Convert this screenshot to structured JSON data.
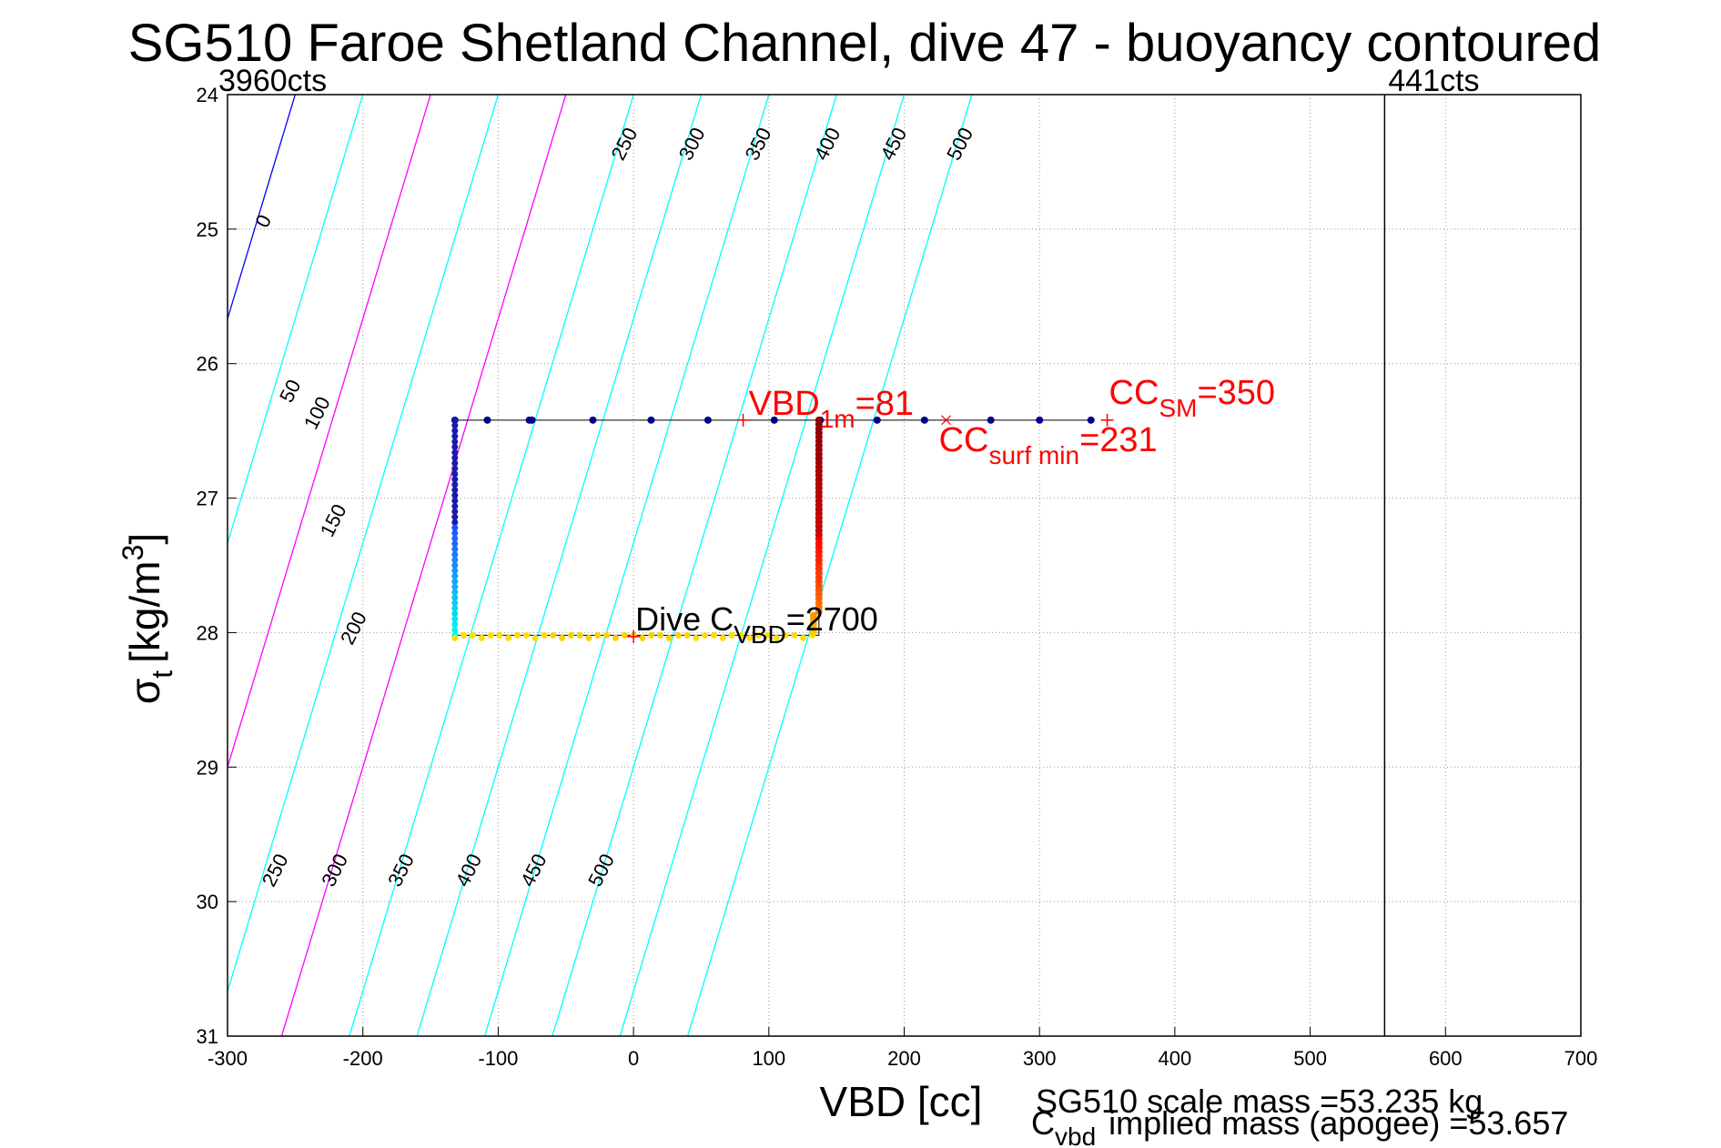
{
  "chart_data": {
    "type": "scatter",
    "title": "SG510 Faroe Shetland Channel, dive 47 - buoyancy contoured",
    "xlabel": "VBD [cc]",
    "ylabel_main": "σ",
    "ylabel_sub": "t",
    "ylabel_rest": "[kg/m",
    "ylabel_sup": "3",
    "ylabel_close": "]",
    "xlim": [
      -300,
      700
    ],
    "ylim": [
      24,
      31
    ],
    "y_reversed": true,
    "xticks": [
      -300,
      -200,
      -100,
      0,
      100,
      200,
      300,
      400,
      500,
      600,
      700
    ],
    "yticks": [
      24,
      25,
      26,
      27,
      28,
      29,
      30,
      31
    ],
    "grid": "dotted",
    "vlines": [
      {
        "x": 555,
        "label": "441cts",
        "color": "#000000"
      }
    ],
    "min_label": "3960cts",
    "contours": {
      "slope_cc_per_sigma": 30,
      "anchor_sigma": 28,
      "lines": [
        {
          "level": 0,
          "x_at_anchor": -370,
          "color": "#0000ff",
          "labels": [
            [
              -271,
              25
            ]
          ]
        },
        {
          "level": 50,
          "x_at_anchor": -320,
          "color": "#00ffff",
          "labels": [
            [
              -253,
              26.3
            ]
          ]
        },
        {
          "level": 100,
          "x_at_anchor": -270,
          "color": "#ff00ff",
          "labels": [
            [
              -235,
              26.5
            ]
          ]
        },
        {
          "level": 150,
          "x_at_anchor": -220,
          "color": "#00ffff",
          "labels": [
            [
              -223,
              27.3
            ]
          ]
        },
        {
          "level": 200,
          "x_at_anchor": -170,
          "color": "#ff00ff",
          "labels": [
            [
              -208,
              28.1
            ]
          ]
        },
        {
          "level": 250,
          "x_at_anchor": -120,
          "color": "#00ffff",
          "labels": [
            [
              -8,
              24.5
            ],
            [
              -266,
              29.9
            ]
          ]
        },
        {
          "level": 300,
          "x_at_anchor": -70,
          "color": "#00ffff",
          "labels": [
            [
              42,
              24.5
            ],
            [
              -222,
              29.9
            ]
          ]
        },
        {
          "level": 350,
          "x_at_anchor": -20,
          "color": "#00ffff",
          "labels": [
            [
              91,
              24.5
            ],
            [
              -173,
              29.9
            ]
          ]
        },
        {
          "level": 400,
          "x_at_anchor": 30,
          "color": "#00ffff",
          "labels": [
            [
              142,
              24.5
            ],
            [
              -123,
              29.9
            ]
          ]
        },
        {
          "level": 450,
          "x_at_anchor": 80,
          "color": "#00ffff",
          "labels": [
            [
              191,
              24.5
            ],
            [
              -75,
              29.9
            ]
          ]
        },
        {
          "level": 500,
          "x_at_anchor": 130,
          "color": "#00ffff",
          "labels": [
            [
              240,
              24.5
            ],
            [
              -25,
              29.9
            ]
          ]
        }
      ]
    },
    "descent_top": {
      "y": 26.42,
      "x": [
        338,
        300,
        264,
        215,
        180,
        138,
        104,
        55,
        13,
        -30,
        -75,
        -77,
        -108,
        -132
      ],
      "color": "#00008b"
    },
    "descent_down": {
      "x": -132,
      "y_start": 26.42,
      "y_end": 27.2,
      "color": "#0000bb"
    },
    "bottom": {
      "y": 28.02,
      "x_from": -132,
      "x_to": 132,
      "color": "#ffdd00"
    },
    "ascent": {
      "x": 137,
      "y_from": 28.0,
      "y_to": 26.42,
      "color": "#8b0000"
    },
    "annotations": {
      "vbd1m": {
        "main": "VBD",
        "sub": "1m",
        "rest": "=81",
        "x": 81,
        "y": 26.42
      },
      "ccsm": {
        "main": "CC",
        "sub": "SM",
        "rest": "=350",
        "x": 350,
        "y": 26.42
      },
      "ccsurfmin": {
        "main": "CC",
        "sub": "surf min",
        "rest": "=231",
        "x": 231,
        "y": 26.42
      },
      "dive_cvbd": {
        "main": "Dive C",
        "sub": "VBD",
        "rest": "=2700",
        "x": 0,
        "y": 28.03
      }
    },
    "mass_line1": "SG510 scale mass =53.235 kg",
    "mass_line2_main": "C",
    "mass_line2_sub": "vbd",
    "mass_line2_rest": "implied mass (apogee) =53.657"
  }
}
